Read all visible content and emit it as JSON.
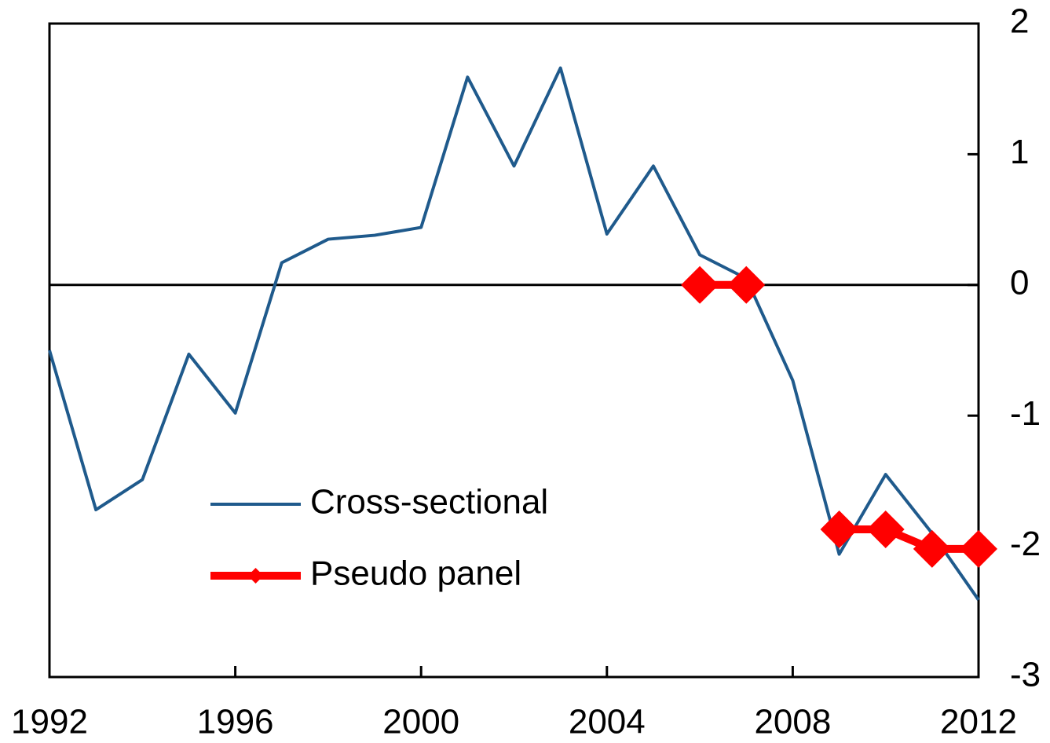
{
  "chart_data": {
    "type": "line",
    "x": [
      1992,
      1993,
      1994,
      1995,
      1996,
      1997,
      1998,
      1999,
      2000,
      2001,
      2002,
      2003,
      2004,
      2005,
      2006,
      2007,
      2008,
      2009,
      2010,
      2011,
      2012
    ],
    "series": [
      {
        "name": "Cross-sectional",
        "color": "#1f5a8c",
        "marker": "none",
        "values": [
          -0.5,
          -1.72,
          -1.49,
          -0.53,
          -0.98,
          0.17,
          0.35,
          0.38,
          0.44,
          1.59,
          0.91,
          1.66,
          0.39,
          0.91,
          0.23,
          0.05,
          -0.73,
          -2.06,
          -1.45,
          -1.9,
          -2.41
        ]
      },
      {
        "name": "Pseudo panel",
        "color": "#ff0000",
        "marker": "diamond",
        "values": [
          null,
          null,
          null,
          null,
          null,
          null,
          null,
          null,
          null,
          null,
          null,
          null,
          null,
          null,
          0,
          0,
          null,
          -1.87,
          -1.87,
          -2.02,
          -2.02
        ]
      }
    ],
    "xlim": [
      1992,
      2012
    ],
    "xticks": [
      1992,
      1996,
      2000,
      2004,
      2008,
      2012
    ],
    "ylim": [
      -3,
      2
    ],
    "yticks": [
      -3,
      -2,
      -1,
      0,
      1,
      2
    ],
    "y_axis_side": "right",
    "zero_line": true,
    "grid": false,
    "legend_position": "lower left"
  }
}
